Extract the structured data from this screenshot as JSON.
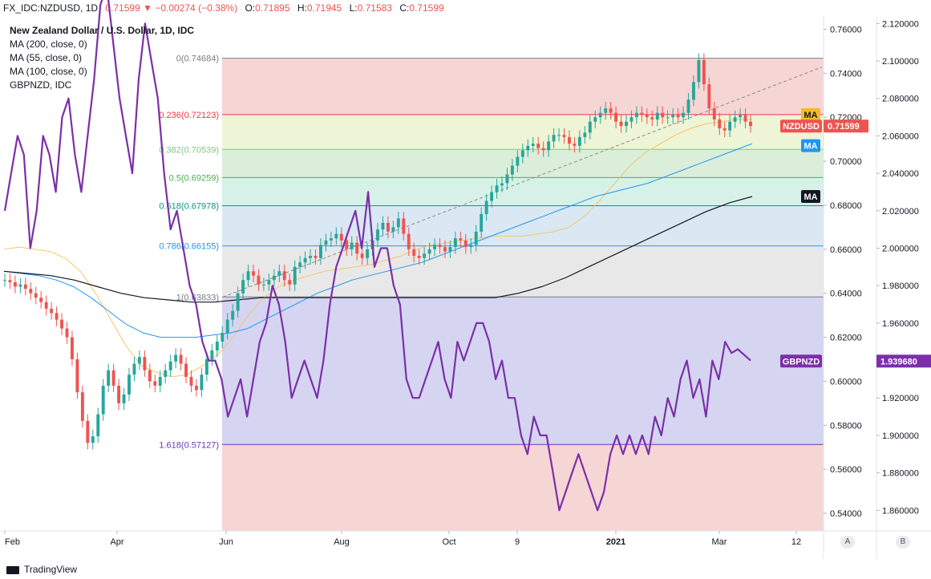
{
  "header": {
    "symbol": "FX_IDC:NZDUSD",
    "interval": "1D",
    "last": "0.71599",
    "change": "−0.00274 (−0.38%)",
    "open_label": "O:",
    "open": "0.71895",
    "high_label": "H:",
    "high": "0.71945",
    "low_label": "L:",
    "low": "0.71583",
    "close_label": "C:",
    "close": "0.71599"
  },
  "legend": [
    "New Zealand Dollar / U.S. Dollar, 1D, IDC",
    "MA (200, close, 0)",
    "MA (55, close, 0)",
    "MA (100, close, 0)",
    "GBPNZD, IDC"
  ],
  "footer": {
    "brand": "TradingView"
  },
  "axis_buttons": [
    "A",
    "B"
  ],
  "chart_data": {
    "type": "line",
    "title": "New Zealand Dollar / U.S. Dollar, 1D, IDC",
    "x_ticks": [
      "Feb",
      "Apr",
      "Jun",
      "Aug",
      "Oct",
      "9",
      "2021",
      "Mar",
      "12"
    ],
    "y_axis_left": {
      "ticks": [
        "0.76000",
        "0.74000",
        "0.72000",
        "0.70000",
        "0.68000",
        "0.66000",
        "0.64000",
        "0.62000",
        "0.60000",
        "0.58000",
        "0.56000",
        "0.54000"
      ],
      "ylim": [
        0.532,
        0.766
      ]
    },
    "y_axis_right": {
      "ticks": [
        "2.120000",
        "2.100000",
        "2.080000",
        "2.060000",
        "2.040000",
        "2.020000",
        "2.000000",
        "1.980000",
        "1.960000",
        "1.940000",
        "1.920000",
        "1.900000",
        "1.880000",
        "1.860000"
      ],
      "ylim": [
        1.849,
        2.124
      ]
    },
    "fibonacci_levels": [
      {
        "label": "0(0.74684)",
        "value": 0.74684,
        "color": "#787b86"
      },
      {
        "label": "0.236(0.72123)",
        "value": 0.72123,
        "color": "#f23645"
      },
      {
        "label": "0.382(0.70539)",
        "value": 0.70539,
        "color": "#81c784"
      },
      {
        "label": "0.5(0.69259)",
        "value": 0.69259,
        "color": "#4caf50"
      },
      {
        "label": "0.618(0.67978)",
        "value": 0.67978,
        "color": "#089981"
      },
      {
        "label": "0.786(0.66155)",
        "value": 0.66155,
        "color": "#2196f3"
      },
      {
        "label": "1(0.63833)",
        "value": 0.63833,
        "color": "#787b86"
      },
      {
        "label": "1.618(0.57127)",
        "value": 0.57127,
        "color": "#673ab7"
      }
    ],
    "fib_zone_colors": [
      "#f5d0d0",
      "#ecf3d2",
      "#d6ecd6",
      "#d3efe7",
      "#d5e6f2",
      "#e6e6e6",
      "#d2d0f0",
      "#f5d0d0"
    ],
    "series": [
      {
        "name": "NZDUSD",
        "color": "#26a69a",
        "values": [
          0.646,
          0.645,
          0.643,
          0.644,
          0.642,
          0.64,
          0.638,
          0.636,
          0.633,
          0.631,
          0.628,
          0.624,
          0.62,
          0.61,
          0.595,
          0.582,
          0.572,
          0.575,
          0.585,
          0.598,
          0.605,
          0.598,
          0.59,
          0.594,
          0.603,
          0.608,
          0.611,
          0.605,
          0.6,
          0.598,
          0.602,
          0.605,
          0.609,
          0.612,
          0.608,
          0.602,
          0.598,
          0.596,
          0.603,
          0.61,
          0.614,
          0.618,
          0.622,
          0.628,
          0.632,
          0.64,
          0.646,
          0.65,
          0.648,
          0.644,
          0.644,
          0.646,
          0.648,
          0.65,
          0.646,
          0.644,
          0.652,
          0.654,
          0.656,
          0.657,
          0.656,
          0.662,
          0.664,
          0.665,
          0.667,
          0.664,
          0.66,
          0.663,
          0.658,
          0.656,
          0.66,
          0.664,
          0.669,
          0.672,
          0.668,
          0.67,
          0.674,
          0.667,
          0.66,
          0.657,
          0.656,
          0.658,
          0.66,
          0.662,
          0.661,
          0.659,
          0.661,
          0.665,
          0.664,
          0.661,
          0.662,
          0.668,
          0.676,
          0.682,
          0.686,
          0.689,
          0.69,
          0.694,
          0.698,
          0.702,
          0.705,
          0.707,
          0.708,
          0.706,
          0.705,
          0.709,
          0.712,
          0.712,
          0.711,
          0.708,
          0.707,
          0.711,
          0.713,
          0.718,
          0.72,
          0.722,
          0.724,
          0.722,
          0.718,
          0.716,
          0.718,
          0.72,
          0.722,
          0.721,
          0.72,
          0.719,
          0.722,
          0.72,
          0.72,
          0.721,
          0.72,
          0.722,
          0.728,
          0.736,
          0.746,
          0.735,
          0.724,
          0.719,
          0.715,
          0.714,
          0.718,
          0.72,
          0.721,
          0.718,
          0.716
        ]
      },
      {
        "name": "MA",
        "color": "#f5c66a",
        "values": [
          0.66,
          0.661,
          0.66,
          0.659,
          0.656,
          0.65,
          0.64,
          0.628,
          0.616,
          0.607,
          0.604,
          0.602,
          0.603,
          0.607,
          0.612,
          0.62,
          0.63,
          0.638,
          0.643,
          0.646,
          0.648,
          0.65,
          0.651,
          0.652,
          0.653,
          0.655,
          0.657,
          0.66,
          0.662,
          0.663,
          0.664,
          0.665,
          0.666,
          0.666,
          0.666,
          0.667,
          0.668,
          0.67,
          0.675,
          0.682,
          0.69,
          0.698,
          0.704,
          0.708,
          0.712,
          0.715,
          0.717,
          0.718,
          0.719,
          0.719
        ]
      },
      {
        "name": "MA",
        "color": "#2196f3",
        "values": [
          0.65,
          0.649,
          0.648,
          0.646,
          0.643,
          0.638,
          0.632,
          0.626,
          0.622,
          0.62,
          0.62,
          0.62,
          0.621,
          0.622,
          0.624,
          0.628,
          0.632,
          0.636,
          0.64,
          0.643,
          0.646,
          0.648,
          0.65,
          0.652,
          0.654,
          0.657,
          0.66,
          0.663,
          0.666,
          0.669,
          0.672,
          0.675,
          0.678,
          0.681,
          0.684,
          0.686,
          0.688,
          0.69,
          0.693,
          0.696,
          0.699,
          0.702,
          0.705,
          0.708
        ]
      },
      {
        "name": "MA",
        "color": "#131722",
        "values": [
          0.65,
          0.649,
          0.648,
          0.646,
          0.643,
          0.64,
          0.638,
          0.637,
          0.636,
          0.636,
          0.637,
          0.638,
          0.638,
          0.638,
          0.638,
          0.638,
          0.638,
          0.638,
          0.638,
          0.638,
          0.638,
          0.638,
          0.64,
          0.643,
          0.647,
          0.652,
          0.657,
          0.662,
          0.667,
          0.672,
          0.677,
          0.681,
          0.684
        ]
      },
      {
        "name": "GBPNZD",
        "color": "#7b2fa8",
        "values": [
          2.02,
          2.04,
          2.06,
          2.05,
          2.0,
          2.02,
          2.06,
          2.05,
          2.03,
          2.07,
          2.08,
          2.05,
          2.03,
          2.06,
          2.09,
          2.13,
          2.14,
          2.11,
          2.08,
          2.06,
          2.04,
          2.09,
          2.12,
          2.1,
          2.08,
          2.04,
          2.01,
          2.02,
          2.0,
          1.98,
          1.97,
          1.95,
          1.94,
          1.94,
          1.93,
          1.91,
          1.92,
          1.93,
          1.91,
          1.93,
          1.95,
          1.96,
          1.98,
          1.97,
          1.95,
          1.92,
          1.93,
          1.94,
          1.93,
          1.92,
          1.94,
          1.97,
          1.99,
          2.0,
          2.01,
          2.02,
          2.0,
          2.03,
          1.99,
          2.0,
          2.0,
          1.98,
          1.97,
          1.93,
          1.92,
          1.92,
          1.93,
          1.94,
          1.95,
          1.93,
          1.92,
          1.95,
          1.94,
          1.95,
          1.96,
          1.96,
          1.95,
          1.93,
          1.94,
          1.92,
          1.92,
          1.9,
          1.89,
          1.91,
          1.9,
          1.9,
          1.88,
          1.86,
          1.87,
          1.88,
          1.89,
          1.88,
          1.87,
          1.86,
          1.87,
          1.89,
          1.9,
          1.89,
          1.9,
          1.89,
          1.9,
          1.89,
          1.91,
          1.9,
          1.92,
          1.91,
          1.93,
          1.94,
          1.92,
          1.93,
          1.91,
          1.94,
          1.93,
          1.95,
          1.944,
          1.946,
          1.943,
          1.94
        ]
      }
    ],
    "last_value_tags": [
      {
        "label": "MA",
        "color": "#f5b92e",
        "text_color": "#131722",
        "value": 0.7212
      },
      {
        "label": "NZDUSD",
        "color": "#ef5350",
        "text_color": "#ffffff",
        "price": "0.71599",
        "value": 0.71599
      },
      {
        "label": "MA",
        "color": "#2196f3",
        "text_color": "#ffffff",
        "value": 0.7071
      },
      {
        "label": "MA",
        "color": "#131722",
        "text_color": "#ffffff",
        "value": 0.684
      },
      {
        "label": "GBPNZD",
        "color": "#7b2fa8",
        "text_color": "#ffffff",
        "price": "1.939680",
        "value": 1.93968
      }
    ],
    "grid": false
  }
}
